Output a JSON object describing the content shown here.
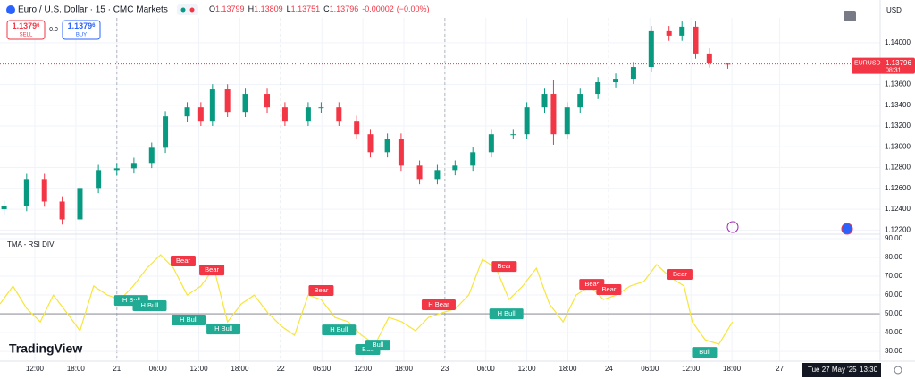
{
  "header": {
    "symbol_title": "Euro / U.S. Dollar · 15 · CMC Markets",
    "ohlc": [
      {
        "label": "O",
        "value": 1.13799
      },
      {
        "label": "H",
        "value": 1.13809
      },
      {
        "label": "L",
        "value": 1.13751
      },
      {
        "label": "C",
        "value": 1.13796
      }
    ],
    "change": -2e-05,
    "change_pct": "(−0.00%)",
    "sell": {
      "price": "1.1379",
      "pip": "6",
      "label": "SELL"
    },
    "spread": "0.0",
    "buy": {
      "price": "1.1379",
      "pip": "6",
      "label": "BUY"
    },
    "currency": "USD",
    "logo": "TradingView",
    "footer_date": "Tue 27 May '25",
    "footer_time": "13:30"
  },
  "chart_data": [
    {
      "type": "candlestick",
      "up_color": "#089981",
      "down_color": "#f23645",
      "x": [
        -16.5,
        -13.2,
        -10.6,
        -8,
        -5.4,
        -2.7,
        0,
        2.5,
        5.1,
        7.1,
        10.3,
        12.3,
        14,
        16.2,
        18.8,
        22,
        24.6,
        28,
        29.9,
        32.5,
        35.1,
        37.1,
        39.6,
        41.6,
        44.3,
        46.9,
        49.5,
        52.1,
        54.8,
        58,
        60,
        62.6,
        63.9,
        65.9,
        67.8,
        70.4,
        73,
        75.6,
        78.2,
        80.8,
        82.7,
        84.7,
        86.7,
        89.4
      ],
      "open": [
        1.124,
        1.12431,
        1.1269,
        1.12474,
        1.12302,
        1.12604,
        1.12776,
        1.12793,
        1.12845,
        1.12991,
        1.13293,
        1.13379,
        1.1325,
        1.13552,
        1.13336,
        1.13509,
        1.13379,
        1.1325,
        1.13379,
        1.13379,
        1.1325,
        1.13121,
        1.12948,
        1.13078,
        1.12819,
        1.1269,
        1.12776,
        1.12819,
        1.12948,
        1.13121,
        1.13121,
        1.13379,
        1.13509,
        1.13121,
        1.13379,
        1.13509,
        1.13621,
        1.13655,
        1.13767,
        1.14112,
        1.14069,
        1.14155,
        1.13897,
        1.13799
      ],
      "high": [
        1.12481,
        1.1274,
        1.1274,
        1.12524,
        1.12654,
        1.12826,
        1.12843,
        1.12895,
        1.13041,
        1.13343,
        1.13429,
        1.13429,
        1.13602,
        1.13602,
        1.13559,
        1.13559,
        1.13429,
        1.13429,
        1.13429,
        1.13429,
        1.133,
        1.13171,
        1.13128,
        1.13128,
        1.12869,
        1.12826,
        1.12869,
        1.12998,
        1.13171,
        1.13171,
        1.13429,
        1.13559,
        1.1364,
        1.13429,
        1.13559,
        1.13671,
        1.13705,
        1.13817,
        1.14162,
        1.14162,
        1.14205,
        1.14205,
        1.13947,
        1.13809
      ],
      "low": [
        1.1235,
        1.12381,
        1.12424,
        1.12252,
        1.12252,
        1.12554,
        1.12726,
        1.12743,
        1.12795,
        1.12941,
        1.13243,
        1.132,
        1.132,
        1.13286,
        1.13286,
        1.13329,
        1.132,
        1.132,
        1.13329,
        1.132,
        1.13071,
        1.12898,
        1.12898,
        1.12769,
        1.1264,
        1.1264,
        1.12726,
        1.12769,
        1.12898,
        1.13071,
        1.13071,
        1.13329,
        1.1302,
        1.13071,
        1.13329,
        1.13459,
        1.13571,
        1.13605,
        1.13717,
        1.14019,
        1.14019,
        1.13847,
        1.1376,
        1.13751
      ],
      "close": [
        1.12431,
        1.1269,
        1.12474,
        1.12302,
        1.12604,
        1.12776,
        1.12793,
        1.12845,
        1.12991,
        1.13293,
        1.13379,
        1.1325,
        1.13552,
        1.13336,
        1.13509,
        1.13379,
        1.1325,
        1.13379,
        1.13379,
        1.1325,
        1.13121,
        1.12948,
        1.13078,
        1.12819,
        1.1269,
        1.12776,
        1.12819,
        1.12948,
        1.13121,
        1.13121,
        1.13379,
        1.13509,
        1.13121,
        1.13379,
        1.13509,
        1.13621,
        1.13655,
        1.13767,
        1.14112,
        1.14069,
        1.14155,
        1.13897,
        1.1381,
        1.13796
      ],
      "xlim": [
        -17.1,
        111.7
      ],
      "xticks": [
        {
          "value": -12,
          "label": "12:00"
        },
        {
          "value": -6,
          "label": "18:00"
        },
        {
          "value": 0,
          "label": "21"
        },
        {
          "value": 6,
          "label": "06:00"
        },
        {
          "value": 12,
          "label": "12:00"
        },
        {
          "value": 18,
          "label": "18:00"
        },
        {
          "value": 24,
          "label": "22"
        },
        {
          "value": 30,
          "label": "06:00"
        },
        {
          "value": 36,
          "label": "12:00"
        },
        {
          "value": 42,
          "label": "18:00"
        },
        {
          "value": 48,
          "label": "23"
        },
        {
          "value": 54,
          "label": "06:00"
        },
        {
          "value": 60,
          "label": "12:00"
        },
        {
          "value": 66,
          "label": "18:00"
        },
        {
          "value": 72,
          "label": "24"
        },
        {
          "value": 78,
          "label": "06:00"
        },
        {
          "value": 84,
          "label": "12:00"
        },
        {
          "value": 90,
          "label": "18:00"
        },
        {
          "value": 97,
          "label": "27"
        }
      ],
      "session_breaks": [
        0,
        24,
        48,
        72
      ],
      "ylim": [
        1.1216,
        1.1424
      ],
      "yticks": [
        {
          "value": 1.122,
          "label": "1.12200"
        },
        {
          "value": 1.124,
          "label": "1.12400"
        },
        {
          "value": 1.126,
          "label": "1.12600"
        },
        {
          "value": 1.128,
          "label": "1.12800"
        },
        {
          "value": 1.13,
          "label": "1.13000"
        },
        {
          "value": 1.132,
          "label": "1.13200"
        },
        {
          "value": 1.134,
          "label": "1.13400"
        },
        {
          "value": 1.136,
          "label": "1.13600"
        },
        {
          "value": 1.14,
          "label": "1.14000"
        }
      ],
      "grid": true,
      "last_price": {
        "symbol": "EURUSD",
        "value": 1.13796,
        "countdown": "08:31",
        "color": "#f23645"
      }
    },
    {
      "type": "line",
      "title": "TMA - RSI DIV",
      "color": "#f7e53b",
      "x": [
        -17.1,
        -15.2,
        -13.2,
        -11.2,
        -9.3,
        -7.3,
        -5.4,
        -3.4,
        -1.4,
        0.5,
        2.4,
        4.4,
        6.4,
        8.3,
        10.3,
        12.3,
        14.2,
        16.2,
        18.2,
        20.1,
        22.1,
        24.1,
        26,
        28,
        29.9,
        31.9,
        33.9,
        35.8,
        37.8,
        39.8,
        41.7,
        43.7,
        45.6,
        47.6,
        49.6,
        51.5,
        53.5,
        55.5,
        57.4,
        59.4,
        61.4,
        63.3,
        65.3,
        67.2,
        69.2,
        71.2,
        73.1,
        75.1,
        77.1,
        79,
        81,
        83,
        84.2,
        86.1,
        88.1,
        90.1
      ],
      "values": [
        55.2,
        64.8,
        52.9,
        45.7,
        60,
        50.5,
        41,
        64.8,
        60,
        57.6,
        64.8,
        74.3,
        81.4,
        74.3,
        60,
        64.8,
        74.3,
        45.7,
        55.2,
        60,
        50.5,
        43.3,
        38.6,
        60,
        57.6,
        48.1,
        45.7,
        38.6,
        33.8,
        48.1,
        45.7,
        41,
        48.1,
        50.5,
        52.9,
        60,
        79,
        74.3,
        57.6,
        64.8,
        74.3,
        55.2,
        45.7,
        60,
        64.8,
        57.6,
        60,
        64.8,
        67.1,
        76.2,
        69.5,
        64.8,
        45.7,
        36.2,
        33.8,
        45.7
      ],
      "xlim": [
        -17.1,
        111.7
      ],
      "ylim": [
        24.8,
        92.4
      ],
      "yticks": [
        {
          "value": 30,
          "label": "30.00"
        },
        {
          "value": 40,
          "label": "40.00"
        },
        {
          "value": 50,
          "label": "50.00"
        },
        {
          "value": 60,
          "label": "60.00"
        },
        {
          "value": 70,
          "label": "70.00"
        },
        {
          "value": 80,
          "label": "80.00"
        },
        {
          "value": 90,
          "label": "90.00"
        }
      ],
      "midline": 50,
      "annotations": [
        {
          "text": "Bear",
          "x": 9.7,
          "y": 78.1,
          "color": "#f23645"
        },
        {
          "text": "Bear",
          "x": 13.9,
          "y": 73.3,
          "color": "#f23645"
        },
        {
          "text": "H Bull",
          "x": 2.1,
          "y": 57.1,
          "color": "#22ab94"
        },
        {
          "text": "H Bull",
          "x": 4.8,
          "y": 54.3,
          "color": "#22ab94"
        },
        {
          "text": "H Bull",
          "x": 10.5,
          "y": 46.7,
          "color": "#22ab94"
        },
        {
          "text": "H Bull",
          "x": 15.6,
          "y": 41.9,
          "color": "#22ab94"
        },
        {
          "text": "Bear",
          "x": 29.9,
          "y": 62.4,
          "color": "#f23645"
        },
        {
          "text": "H Bull",
          "x": 32.5,
          "y": 41.4,
          "color": "#22ab94"
        },
        {
          "text": "Bull",
          "x": 36.7,
          "y": 31,
          "color": "#22ab94"
        },
        {
          "text": "Bull",
          "x": 38.2,
          "y": 33.3,
          "color": "#22ab94"
        },
        {
          "text": "H Bear",
          "x": 47.1,
          "y": 54.8,
          "color": "#f23645"
        },
        {
          "text": "Bear",
          "x": 56.7,
          "y": 75.2,
          "color": "#f23645"
        },
        {
          "text": "H Bull",
          "x": 57,
          "y": 50,
          "color": "#22ab94"
        },
        {
          "text": "Bear",
          "x": 69.5,
          "y": 65.7,
          "color": "#f23645"
        },
        {
          "text": "Bear",
          "x": 72,
          "y": 62.9,
          "color": "#f23645"
        },
        {
          "text": "Bear",
          "x": 82.4,
          "y": 71,
          "color": "#f23645"
        },
        {
          "text": "Bull",
          "x": 86,
          "y": 29.5,
          "color": "#22ab94"
        }
      ]
    }
  ]
}
